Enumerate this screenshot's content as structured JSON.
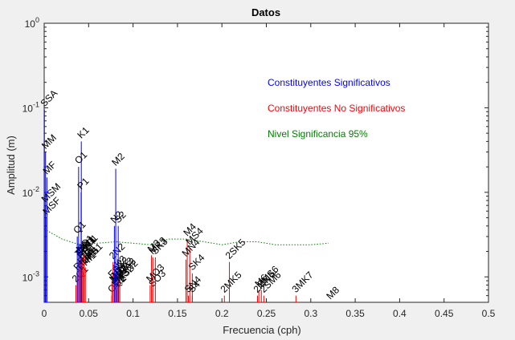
{
  "chart_data": {
    "type": "stem",
    "title": "Datos",
    "xlabel": "Frecuencia (cph)",
    "ylabel": "Amplitud (m)",
    "xlim": [
      0,
      0.5
    ],
    "ylim": [
      0.0005,
      1
    ],
    "y_scale": "log",
    "grid": false,
    "x_ticks": [
      0,
      0.05,
      0.1,
      0.15,
      0.2,
      0.25,
      0.3,
      0.35,
      0.4,
      0.45,
      0.5
    ],
    "x_tick_labels": [
      "0",
      "0.05",
      "0.1",
      "0.15",
      "0.2",
      "0.25",
      "0.3",
      "0.35",
      "0.4",
      "0.45",
      "0.5"
    ],
    "y_tick_labels": [
      {
        "value": 1,
        "mantissa": "10",
        "exp": "0"
      },
      {
        "value": 0.1,
        "mantissa": "10",
        "exp": "-1"
      },
      {
        "value": 0.01,
        "mantissa": "10",
        "exp": "-2"
      },
      {
        "value": 0.001,
        "mantissa": "10",
        "exp": "-3"
      }
    ],
    "legend": {
      "placement": "upper-right",
      "entries": [
        {
          "label": "Constituyentes Significativos",
          "color": "#0000ff"
        },
        {
          "label": "Constituyentes No Significativos",
          "color": "#ff0000"
        },
        {
          "label": "Nivel Significancia 95%",
          "color": "#008000"
        }
      ]
    },
    "significant": [
      {
        "name": "SSA",
        "freq": 0.00023,
        "amp": 0.095
      },
      {
        "name": "MM",
        "freq": 0.00151,
        "amp": 0.03
      },
      {
        "name": "MF",
        "freq": 0.00305,
        "amp": 0.015
      },
      {
        "name": "MSM",
        "freq": 0.0013,
        "amp": 0.007
      },
      {
        "name": "MSF",
        "freq": 0.00282,
        "amp": 0.005
      },
      {
        "name": "K1",
        "freq": 0.04178,
        "amp": 0.04
      },
      {
        "name": "O1",
        "freq": 0.03873,
        "amp": 0.02
      },
      {
        "name": "P1",
        "freq": 0.04155,
        "amp": 0.01
      },
      {
        "name": "Q1",
        "freq": 0.03722,
        "amp": 0.003
      },
      {
        "name": "M2",
        "freq": 0.08051,
        "amp": 0.019
      },
      {
        "name": "N2",
        "freq": 0.079,
        "amp": 0.004
      },
      {
        "name": "S2",
        "freq": 0.08333,
        "amp": 0.004
      }
    ],
    "non_significant": [
      {
        "name": "M3",
        "freq": 0.12077,
        "amp": 0.0018
      },
      {
        "name": "MK3",
        "freq": 0.12229,
        "amp": 0.0017
      },
      {
        "name": "SO3",
        "freq": 0.12206,
        "amp": 0.0007
      },
      {
        "name": "SK3",
        "freq": 0.12511,
        "amp": 0.0017
      },
      {
        "name": "M4",
        "freq": 0.16102,
        "amp": 0.0028
      },
      {
        "name": "MS4",
        "freq": 0.16384,
        "amp": 0.0022
      },
      {
        "name": "MN4",
        "freq": 0.15951,
        "amp": 0.0016
      },
      {
        "name": "SK4",
        "freq": 0.1667,
        "amp": 0.0011
      },
      {
        "name": "SN4",
        "freq": 0.16233,
        "amp": 0.0006
      },
      {
        "name": "S4",
        "freq": 0.16667,
        "amp": 0.0006
      },
      {
        "name": "2MK5",
        "freq": 0.2028,
        "amp": 0.0006
      },
      {
        "name": "2SK5",
        "freq": 0.20844,
        "amp": 0.0015
      },
      {
        "name": "M6",
        "freq": 0.24153,
        "amp": 0.0007
      },
      {
        "name": "2MS6",
        "freq": 0.24436,
        "amp": 0.0007
      },
      {
        "name": "2MN6",
        "freq": 0.24002,
        "amp": 0.0006
      },
      {
        "name": "2SM6",
        "freq": 0.24718,
        "amp": 0.0006
      },
      {
        "name": "3MK7",
        "freq": 0.28331,
        "amp": 0.0006
      },
      {
        "name": "M8",
        "freq": 0.32205,
        "amp": 0.0005
      },
      {
        "name": "2Q1",
        "freq": 0.03571,
        "amp": 0.0008
      },
      {
        "name": "RHO1",
        "freq": 0.03742,
        "amp": 0.0011
      },
      {
        "name": "TAU1",
        "freq": 0.03896,
        "amp": 0.0016
      },
      {
        "name": "BET1",
        "freq": 0.04004,
        "amp": 0.0016
      },
      {
        "name": "NO1",
        "freq": 0.04027,
        "amp": 0.0018
      },
      {
        "name": "CHI1",
        "freq": 0.04047,
        "amp": 0.0017
      },
      {
        "name": "PI1",
        "freq": 0.04144,
        "amp": 0.0015
      },
      {
        "name": "S1",
        "freq": 0.04167,
        "amp": 0.0018
      },
      {
        "name": "PSI1",
        "freq": 0.04189,
        "amp": 0.0013
      },
      {
        "name": "PHI1",
        "freq": 0.04201,
        "amp": 0.0011
      },
      {
        "name": "THE1",
        "freq": 0.04309,
        "amp": 0.0012
      },
      {
        "name": "J1",
        "freq": 0.04329,
        "amp": 0.0017
      },
      {
        "name": "SO1",
        "freq": 0.04462,
        "amp": 0.0014
      },
      {
        "name": "OO1",
        "freq": 0.04483,
        "amp": 0.0018
      },
      {
        "name": "UPS1",
        "freq": 0.04634,
        "amp": 0.0013
      },
      {
        "name": "OQ2",
        "freq": 0.07597,
        "amp": 0.0006
      },
      {
        "name": "EPS2",
        "freq": 0.07618,
        "amp": 0.0009
      },
      {
        "name": "2N2",
        "freq": 0.07749,
        "amp": 0.0015
      },
      {
        "name": "MU2",
        "freq": 0.07769,
        "amp": 0.0008
      },
      {
        "name": "NU2",
        "freq": 0.0792,
        "amp": 0.0008
      },
      {
        "name": "H1",
        "freq": 0.0804,
        "amp": 0.0009
      },
      {
        "name": "H2",
        "freq": 0.08063,
        "amp": 0.0008
      },
      {
        "name": "MKS2",
        "freq": 0.08074,
        "amp": 0.0007
      },
      {
        "name": "LDA2",
        "freq": 0.08182,
        "amp": 0.0009
      },
      {
        "name": "L2",
        "freq": 0.08202,
        "amp": 0.0011
      },
      {
        "name": "T2",
        "freq": 0.08322,
        "amp": 0.0008
      },
      {
        "name": "R2",
        "freq": 0.08345,
        "amp": 0.0007
      },
      {
        "name": "K2",
        "freq": 0.08356,
        "amp": 0.0012
      },
      {
        "name": "MSN2",
        "freq": 0.08485,
        "amp": 0.0008
      },
      {
        "name": "ETA2",
        "freq": 0.08507,
        "amp": 0.0009
      },
      {
        "name": "MO3",
        "freq": 0.11924,
        "amp": 0.0008
      }
    ],
    "significance_level": {
      "freq": [
        0.0,
        0.02,
        0.04,
        0.06,
        0.08,
        0.1,
        0.12,
        0.14,
        0.16,
        0.18,
        0.2,
        0.22,
        0.24,
        0.26,
        0.28,
        0.3,
        0.32
      ],
      "amp": [
        0.0037,
        0.0028,
        0.0024,
        0.0025,
        0.0026,
        0.0025,
        0.0024,
        0.0028,
        0.0028,
        0.0026,
        0.0024,
        0.0026,
        0.0026,
        0.0024,
        0.0024,
        0.0024,
        0.0025
      ]
    }
  }
}
